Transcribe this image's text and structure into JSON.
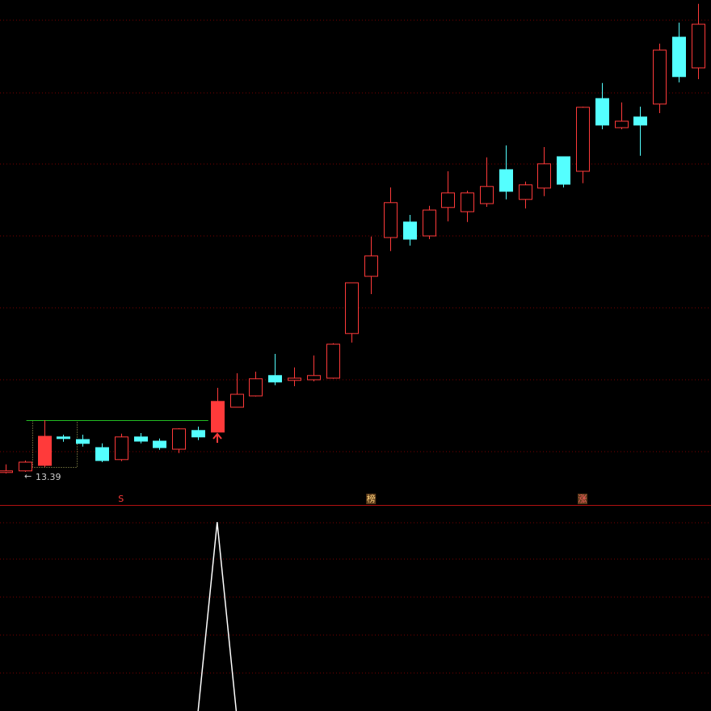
{
  "chart_data": [
    {
      "type": "candlestick",
      "open": [
        13.22,
        13.27,
        13.44,
        14.32,
        14.24,
        13.99,
        13.62,
        14.32,
        14.19,
        13.94,
        14.52,
        14.47,
        15.24,
        15.59,
        16.22,
        16.07,
        16.09,
        16.14,
        17.52,
        19.29,
        20.49,
        20.97,
        20.54,
        21.42,
        21.29,
        21.54,
        22.59,
        21.67,
        22.02,
        22.99,
        22.54,
        24.79,
        23.89,
        24.22,
        24.62,
        26.69,
        25.74
      ],
      "high": [
        13.47,
        13.59,
        14.84,
        14.39,
        14.39,
        14.12,
        14.42,
        14.44,
        14.27,
        14.59,
        14.64,
        15.84,
        16.29,
        16.34,
        16.89,
        16.47,
        16.84,
        17.22,
        19.09,
        20.52,
        22.04,
        21.19,
        21.47,
        22.54,
        21.94,
        22.97,
        23.34,
        22.22,
        23.29,
        22.99,
        24.54,
        25.27,
        24.67,
        24.54,
        26.49,
        27.14,
        27.72
      ],
      "low": [
        13.19,
        13.24,
        13.39,
        14.17,
        14.02,
        13.54,
        13.57,
        14.12,
        13.92,
        13.82,
        14.22,
        14.47,
        15.24,
        15.57,
        15.92,
        15.89,
        16.04,
        16.12,
        17.24,
        18.74,
        20.07,
        20.24,
        20.44,
        20.99,
        20.97,
        21.44,
        21.67,
        21.39,
        21.77,
        22.04,
        22.17,
        23.84,
        23.84,
        23.02,
        24.34,
        25.29,
        25.39
      ],
      "close": [
        13.27,
        13.54,
        14.34,
        14.27,
        14.12,
        13.59,
        14.32,
        14.19,
        13.99,
        14.57,
        14.32,
        15.42,
        15.64,
        16.12,
        16.02,
        16.14,
        16.22,
        17.19,
        19.09,
        19.92,
        21.57,
        20.44,
        21.34,
        21.87,
        21.87,
        22.07,
        21.92,
        22.12,
        22.77,
        22.14,
        24.52,
        23.97,
        24.09,
        23.97,
        26.29,
        25.47,
        27.09
      ],
      "filled": [
        false,
        false,
        true,
        false,
        false,
        false,
        false,
        false,
        false,
        false,
        false,
        true,
        false,
        false,
        false,
        false,
        false,
        false,
        false,
        false,
        false,
        false,
        false,
        false,
        false,
        false,
        false,
        false,
        false,
        false,
        false,
        false,
        false,
        false,
        false,
        false,
        false
      ],
      "signals": [
        null,
        null,
        null,
        null,
        null,
        null,
        "S",
        null,
        null,
        null,
        null,
        null,
        null,
        null,
        null,
        null,
        null,
        null,
        null,
        "榜",
        null,
        null,
        null,
        null,
        null,
        null,
        null,
        null,
        null,
        null,
        "涨",
        null,
        null,
        null,
        null,
        null,
        null
      ],
      "up_color": "#ff3a3a",
      "down_color": "#54ffff",
      "ref_line_color": "#22bb22",
      "ylim": [
        12.89,
        27.84
      ]
    },
    {
      "type": "line",
      "color": "#ffffff",
      "values": [
        0,
        0,
        0,
        0,
        0,
        0,
        0,
        0,
        0,
        0,
        0,
        1,
        0,
        0,
        0,
        0,
        0,
        0,
        0,
        0,
        0,
        0,
        0,
        0,
        0,
        0,
        0,
        0,
        0,
        0,
        0,
        0,
        0,
        0,
        0,
        0,
        0
      ],
      "ylim": [
        0,
        1.09
      ]
    }
  ]
}
